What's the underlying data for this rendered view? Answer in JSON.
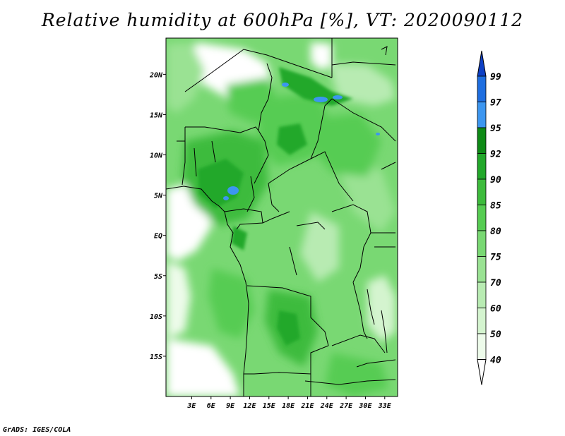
{
  "title": "Relative humidity at 600hPa [%], VT: 2020090112",
  "credit": "GrADS: IGES/COLA",
  "map": {
    "lon_range": [
      -1,
      35
    ],
    "lat_range": [
      -20,
      24.5
    ],
    "lat_ticks": [
      {
        "value": 20,
        "label": "20N"
      },
      {
        "value": 15,
        "label": "15N"
      },
      {
        "value": 10,
        "label": "10N"
      },
      {
        "value": 5,
        "label": "5N"
      },
      {
        "value": 0,
        "label": "EQ"
      },
      {
        "value": -5,
        "label": "5S"
      },
      {
        "value": -10,
        "label": "10S"
      },
      {
        "value": -15,
        "label": "15S"
      }
    ],
    "lon_ticks": [
      {
        "value": 3,
        "label": "3E"
      },
      {
        "value": 6,
        "label": "6E"
      },
      {
        "value": 9,
        "label": "9E"
      },
      {
        "value": 12,
        "label": "12E"
      },
      {
        "value": 15,
        "label": "15E"
      },
      {
        "value": 18,
        "label": "18E"
      },
      {
        "value": 21,
        "label": "21E"
      },
      {
        "value": 24,
        "label": "24E"
      },
      {
        "value": 27,
        "label": "27E"
      },
      {
        "value": 30,
        "label": "30E"
      },
      {
        "value": 33,
        "label": "33E"
      }
    ]
  },
  "colorbar": {
    "levels": [
      "99",
      "97",
      "95",
      "92",
      "90",
      "85",
      "80",
      "75",
      "70",
      "60",
      "50",
      "40"
    ],
    "colors": [
      "#0d3fc4",
      "#1e6ee0",
      "#3c96f0",
      "#0e8a16",
      "#22a82a",
      "#3dbb3c",
      "#56cc52",
      "#79d873",
      "#9ae293",
      "#b8ebb2",
      "#d4f4cf",
      "#edfbea",
      "#ffffff"
    ],
    "under_color": "#ffffff",
    "over_color": "#0d3fc4"
  }
}
